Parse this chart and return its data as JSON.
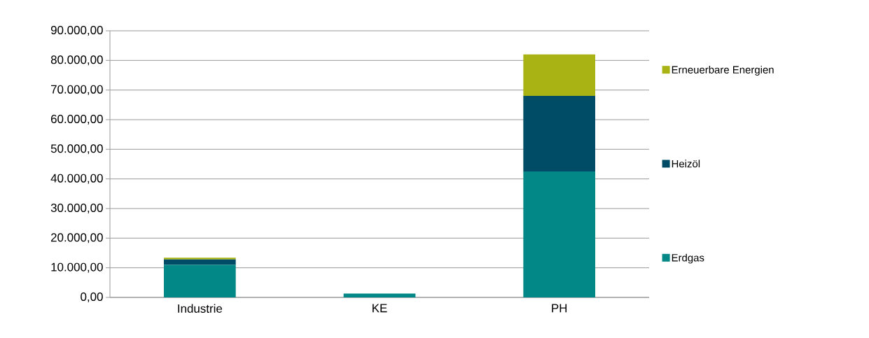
{
  "chart_data": {
    "type": "bar",
    "stacked": true,
    "categories": [
      "Industrie",
      "KE",
      "PH"
    ],
    "series": [
      {
        "name": "Erdgas",
        "color": "#038888",
        "values": [
          11000,
          1300,
          42500
        ]
      },
      {
        "name": "Heizöl",
        "color": "#004c66",
        "values": [
          1800,
          0,
          25500
        ]
      },
      {
        "name": "Erneuerbare Energien",
        "color": "#a9b414",
        "values": [
          600,
          0,
          14000
        ]
      }
    ],
    "ylim": [
      0,
      90000
    ],
    "yticks": [
      {
        "value": 0,
        "label": "0,00"
      },
      {
        "value": 10000,
        "label": "10.000,00"
      },
      {
        "value": 20000,
        "label": "20.000,00"
      },
      {
        "value": 30000,
        "label": "30.000,00"
      },
      {
        "value": 40000,
        "label": "40.000,00"
      },
      {
        "value": 50000,
        "label": "50.000,00"
      },
      {
        "value": 60000,
        "label": "60.000,00"
      },
      {
        "value": 70000,
        "label": "70.000,00"
      },
      {
        "value": 80000,
        "label": "80.000,00"
      },
      {
        "value": 90000,
        "label": "90.000,00"
      }
    ],
    "grid": "y",
    "legend": "right"
  }
}
